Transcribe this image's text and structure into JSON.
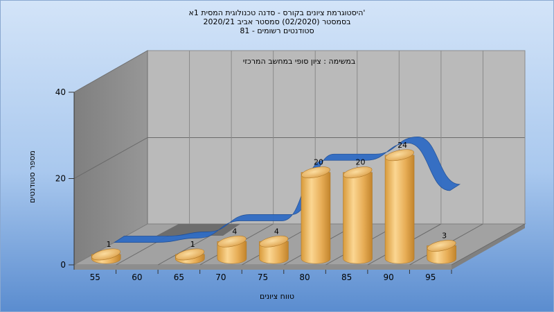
{
  "chart_data": {
    "type": "bar",
    "title_lines": [
      "היסטוגרמת ציונים בקורס - סדנה טכנולוגית המסית 1א'",
      "בסמסטר  (02/2020)  סמסטר אביב 2020/21",
      "סטודנטים רשומים - 81"
    ],
    "annotation": "במשימה : ציון סופי במחשב המרכזי",
    "xlabel": "טווח ציונים",
    "ylabel": "מספר סטודנטים",
    "ylim": [
      0,
      40
    ],
    "y_ticks": [
      "0",
      "20",
      "40"
    ],
    "x_ticks": [
      "55",
      "60",
      "65",
      "70",
      "75",
      "80",
      "85",
      "90",
      "95"
    ],
    "categories": [
      "55",
      "65",
      "70",
      "75",
      "80",
      "85",
      "90",
      "95"
    ],
    "values": [
      1,
      1,
      4,
      4,
      20,
      20,
      24,
      3
    ],
    "value_labels": [
      "1",
      "1",
      "4",
      "4",
      "20",
      "20",
      "24",
      "3"
    ],
    "curve_series": [
      0,
      0,
      1,
      5,
      5,
      19,
      19,
      23,
      12
    ]
  },
  "colors": {
    "background_top": "#cfe2f7",
    "background_bottom": "#5b8fd0",
    "plot_back": "#b9b9b9",
    "left_wall": "#8a8a8a",
    "floor": "#9e9e9e",
    "bar_light": "#f9d28c",
    "bar_dark": "#c98a2e",
    "curve": "#2f6cc4"
  }
}
